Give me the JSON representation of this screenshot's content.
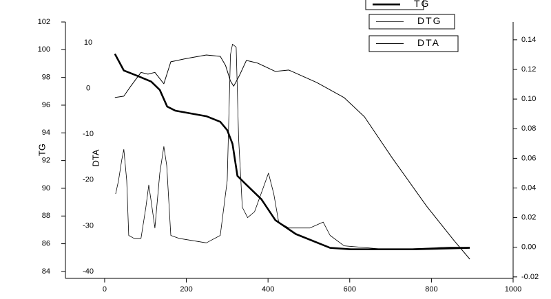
{
  "chart_data": {
    "type": "line",
    "x_label": null,
    "y_label": "TG",
    "y3_label": "DTA",
    "xlim": [
      -96,
      1000
    ],
    "xticks": [
      0,
      200,
      400,
      600,
      800,
      1000
    ],
    "ylim": [
      83.5,
      102
    ],
    "yticks": [
      84,
      86,
      88,
      90,
      92,
      94,
      96,
      98,
      100,
      102
    ],
    "y3lim": [
      -41.5,
      14.5
    ],
    "y3ticks": [
      -40,
      -30,
      -20,
      -10,
      0,
      10
    ],
    "y2lim": [
      -0.021,
      0.152
    ],
    "y2ticks": [
      -0.02,
      {
        "value": 0,
        "label": "0.00"
      },
      0.02,
      0.04,
      0.06,
      0.08,
      {
        "value": 0.1,
        "label": "0.10"
      },
      0.12,
      0.14
    ],
    "series": [
      {
        "name": "TG",
        "color": "#000000",
        "axis": "y",
        "x": [
          25,
          47,
          81,
          114,
          135,
          153,
          173,
          249,
          283,
          300,
          313,
          325,
          342,
          384,
          418,
          468,
          552,
          603,
          754,
          894
        ],
        "values": [
          99.7,
          98.5,
          98.1,
          97.7,
          97.1,
          95.9,
          95.6,
          95.2,
          94.8,
          94.2,
          93.2,
          90.9,
          90.4,
          89.2,
          87.7,
          86.7,
          85.7,
          85.6,
          85.6,
          85.7
        ]
      },
      {
        "name": "DTG",
        "color": "#000000",
        "axis": "y2",
        "x": [
          27,
          34,
          42,
          47,
          54,
          59,
          72,
          89,
          101,
          108,
          114,
          123,
          135,
          145,
          152,
          162,
          182,
          249,
          283,
          300,
          308,
          313,
          322,
          328,
          337,
          350,
          367,
          392,
          401,
          414,
          426,
          451,
          502,
          535,
          552,
          586,
          670,
          754,
          838,
          894
        ],
        "values": [
          0.036,
          0.045,
          0.059,
          0.066,
          0.045,
          0.008,
          0.006,
          0.006,
          0.027,
          0.042,
          0.031,
          0.013,
          0.05,
          0.068,
          0.055,
          0.008,
          0.006,
          0.003,
          0.008,
          0.045,
          0.13,
          0.137,
          0.135,
          0.073,
          0.027,
          0.02,
          0.024,
          0.043,
          0.05,
          0.036,
          0.017,
          0.013,
          0.013,
          0.017,
          0.008,
          0.001,
          -0.001,
          -0.001,
          0.0,
          0.0
        ]
      },
      {
        "name": "DTA",
        "color": "#000000",
        "axis": "y3",
        "x": [
          25,
          47,
          64,
          89,
          106,
          123,
          145,
          162,
          199,
          249,
          283,
          296,
          308,
          316,
          330,
          347,
          375,
          418,
          451,
          519,
          586,
          636,
          704,
          788,
          855,
          894
        ],
        "values": [
          -2.0,
          -1.7,
          0.5,
          3.5,
          3.1,
          3.5,
          1.0,
          5.8,
          6.5,
          7.3,
          7.0,
          5.0,
          1.6,
          0.5,
          2.8,
          6.1,
          5.5,
          3.7,
          4.0,
          1.3,
          -2.0,
          -6.2,
          -15.2,
          -25.7,
          -33.2,
          -37.3
        ]
      }
    ]
  }
}
